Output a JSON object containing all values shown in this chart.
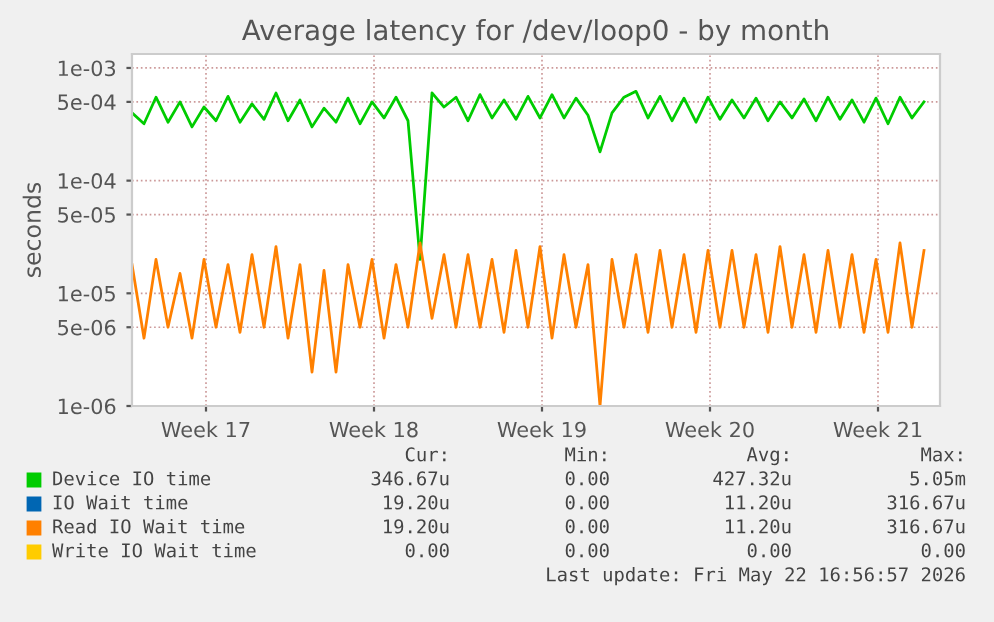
{
  "chart_data": {
    "type": "line",
    "title": "Average latency for /dev/loop0 - by month",
    "ylabel": "seconds",
    "log": "y",
    "grid": true,
    "legend": "bottom",
    "marker": "none",
    "line_style": "solid",
    "ylim": [
      1e-06,
      0.00133
    ],
    "yticks": [
      {
        "value": 0.001,
        "label": "1e-03"
      },
      {
        "value": 0.0005,
        "label": "5e-04"
      },
      {
        "value": 0.0001,
        "label": "1e-04"
      },
      {
        "value": 5e-05,
        "label": "5e-05"
      },
      {
        "value": 1e-05,
        "label": "1e-05"
      },
      {
        "value": 5e-06,
        "label": "5e-06"
      },
      {
        "value": 1e-06,
        "label": "1e-06"
      }
    ],
    "xlim": [
      "2026-04-19T10:00",
      "2026-05-23T02:00"
    ],
    "xticks": [
      {
        "value": "2026-04-22T12:00",
        "label": "Week 17"
      },
      {
        "value": "2026-04-29T12:00",
        "label": "Week 18"
      },
      {
        "value": "2026-05-06T12:00",
        "label": "Week 19"
      },
      {
        "value": "2026-05-13T12:00",
        "label": "Week 20"
      },
      {
        "value": "2026-05-20T12:00",
        "label": "Week 21"
      }
    ],
    "x": [
      "2026-04-19T10:00",
      "2026-04-19T22:00",
      "2026-04-20T10:00",
      "2026-04-20T22:00",
      "2026-04-21T10:00",
      "2026-04-21T22:00",
      "2026-04-22T10:00",
      "2026-04-22T22:00",
      "2026-04-23T10:00",
      "2026-04-23T22:00",
      "2026-04-24T10:00",
      "2026-04-24T22:00",
      "2026-04-25T10:00",
      "2026-04-25T22:00",
      "2026-04-26T10:00",
      "2026-04-26T22:00",
      "2026-04-27T10:00",
      "2026-04-27T22:00",
      "2026-04-28T10:00",
      "2026-04-28T22:00",
      "2026-04-29T10:00",
      "2026-04-29T22:00",
      "2026-04-30T10:00",
      "2026-04-30T22:00",
      "2026-05-01T10:00",
      "2026-05-01T22:00",
      "2026-05-02T10:00",
      "2026-05-02T22:00",
      "2026-05-03T10:00",
      "2026-05-03T22:00",
      "2026-05-04T10:00",
      "2026-05-04T22:00",
      "2026-05-05T10:00",
      "2026-05-05T22:00",
      "2026-05-06T10:00",
      "2026-05-06T22:00",
      "2026-05-07T10:00",
      "2026-05-07T22:00",
      "2026-05-08T10:00",
      "2026-05-08T22:00",
      "2026-05-09T10:00",
      "2026-05-09T22:00",
      "2026-05-10T10:00",
      "2026-05-10T22:00",
      "2026-05-11T10:00",
      "2026-05-11T22:00",
      "2026-05-12T10:00",
      "2026-05-12T22:00",
      "2026-05-13T10:00",
      "2026-05-13T22:00",
      "2026-05-14T10:00",
      "2026-05-14T22:00",
      "2026-05-15T10:00",
      "2026-05-15T22:00",
      "2026-05-16T10:00",
      "2026-05-16T22:00",
      "2026-05-17T10:00",
      "2026-05-17T22:00",
      "2026-05-18T10:00",
      "2026-05-18T22:00",
      "2026-05-19T10:00",
      "2026-05-19T22:00",
      "2026-05-20T10:00",
      "2026-05-20T22:00",
      "2026-05-21T10:00",
      "2026-05-21T22:00",
      "2026-05-22T10:00"
    ],
    "series": [
      {
        "name": "Device IO time",
        "color": "#00cc00",
        "values": [
          0.0004,
          0.00032,
          0.00055,
          0.00033,
          0.0005,
          0.0003,
          0.00045,
          0.00034,
          0.00056,
          0.00033,
          0.00048,
          0.00035,
          0.0006,
          0.00034,
          0.00052,
          0.0003,
          0.00044,
          0.00033,
          0.00054,
          0.00032,
          0.0005,
          0.00036,
          0.00055,
          0.00034,
          2e-05,
          0.0006,
          0.00045,
          0.00055,
          0.00034,
          0.00058,
          0.00036,
          0.00052,
          0.00035,
          0.00056,
          0.00036,
          0.00058,
          0.00036,
          0.00054,
          0.00038,
          0.00018,
          0.0004,
          0.00055,
          0.00062,
          0.00036,
          0.00056,
          0.00034,
          0.00054,
          0.00033,
          0.00055,
          0.00035,
          0.00052,
          0.00036,
          0.00054,
          0.00034,
          0.0005,
          0.00036,
          0.00053,
          0.00034,
          0.00055,
          0.00035,
          0.00052,
          0.00033,
          0.00054,
          0.00032,
          0.00055,
          0.00036,
          0.0005
        ]
      },
      {
        "name": "IO Wait time",
        "color": "#0066b3",
        "values": [
          null,
          null,
          null,
          null,
          null,
          null,
          null,
          null,
          null,
          null,
          null,
          null,
          null,
          null,
          null,
          null,
          null,
          null,
          null,
          null,
          null,
          null,
          null,
          null,
          null,
          null,
          null,
          null,
          null,
          null,
          null,
          null,
          null,
          null,
          null,
          null,
          null,
          null,
          null,
          null,
          null,
          null,
          null,
          null,
          null,
          null,
          null,
          null,
          null,
          null,
          null,
          null,
          null,
          null,
          null,
          null,
          null,
          null,
          null,
          null,
          null,
          null,
          null,
          null,
          null,
          null,
          null
        ]
      },
      {
        "name": "Read IO Wait time",
        "color": "#ff8000",
        "values": [
          1.8e-05,
          4e-06,
          2e-05,
          5e-06,
          1.5e-05,
          4e-06,
          2e-05,
          5e-06,
          1.8e-05,
          4.5e-06,
          2.2e-05,
          5e-06,
          2.6e-05,
          4e-06,
          1.8e-05,
          2e-06,
          1.6e-05,
          2e-06,
          1.8e-05,
          5e-06,
          2e-05,
          4e-06,
          1.8e-05,
          5e-06,
          2.8e-05,
          6e-06,
          2.2e-05,
          5e-06,
          2.2e-05,
          5e-06,
          2e-05,
          4.5e-06,
          2.4e-05,
          5e-06,
          2.6e-05,
          4e-06,
          2.2e-05,
          5e-06,
          1.8e-05,
          1e-06,
          2e-05,
          5e-06,
          2.2e-05,
          4.5e-06,
          2.4e-05,
          5e-06,
          2.2e-05,
          4.5e-06,
          2.4e-05,
          5e-06,
          2.4e-05,
          5e-06,
          2.2e-05,
          4.5e-06,
          2.6e-05,
          5e-06,
          2.2e-05,
          4.5e-06,
          2.4e-05,
          5e-06,
          2.2e-05,
          4.5e-06,
          2e-05,
          4.5e-06,
          2.8e-05,
          5e-06,
          2.4e-05
        ]
      },
      {
        "name": "Write IO Wait time",
        "color": "#ffcc00",
        "values": [
          null,
          null,
          null,
          null,
          null,
          null,
          null,
          null,
          null,
          null,
          null,
          null,
          null,
          null,
          null,
          null,
          null,
          null,
          null,
          null,
          null,
          null,
          null,
          null,
          null,
          null,
          null,
          null,
          null,
          null,
          null,
          null,
          null,
          null,
          null,
          null,
          null,
          null,
          null,
          null,
          null,
          null,
          null,
          null,
          null,
          null,
          null,
          null,
          null,
          null,
          null,
          null,
          null,
          null,
          null,
          null,
          null,
          null,
          null,
          null,
          null,
          null,
          null,
          null,
          null,
          null,
          null
        ]
      }
    ],
    "annotations": [
      "Cur:",
      "Min:",
      "Avg:",
      "Max:",
      "346.67u",
      "0.00",
      "427.32u",
      "5.05m",
      "19.20u",
      "0.00",
      "11.20u",
      "316.67u",
      "19.20u",
      "0.00",
      "11.20u",
      "316.67u",
      "0.00",
      "0.00",
      "0.00",
      "0.00",
      "Last update: Fri May 22 16:56:57 2026"
    ]
  }
}
